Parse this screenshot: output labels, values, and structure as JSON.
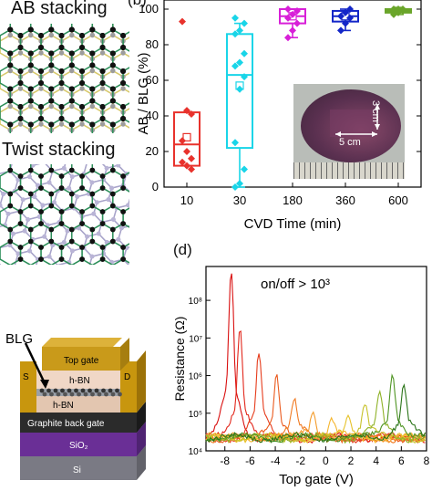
{
  "panel_a": {
    "label_ab": "AB stacking",
    "label_twist": "Twist stacking"
  },
  "panel_b": {
    "label": "(b)",
    "inset": {
      "dim_width": "5 cm",
      "dim_height": "3 cm"
    }
  },
  "panel_c": {
    "label_bl": "BLG",
    "layers": [
      "Top gate",
      "h-BN",
      "h-BN",
      "Graphite back gate",
      "SiO₂",
      "Si"
    ],
    "contact_s": "S",
    "contact_d": "D"
  },
  "panel_d": {
    "label": "(d)",
    "annotation": "on/off > 10³"
  },
  "chart_data": [
    {
      "type": "box",
      "xlabel": "CVD Time (min)",
      "ylabel": "AB / BLG (%)",
      "categories": [
        "10",
        "30",
        "180",
        "360",
        "600"
      ],
      "ylim": [
        0,
        100
      ],
      "yticks": [
        0,
        20,
        40,
        60,
        80,
        100
      ],
      "colors": [
        "#e8322c",
        "#19d5e8",
        "#d81fd8",
        "#1326c8",
        "#6aa52a"
      ],
      "boxes": [
        {
          "q1": 12,
          "median": 24,
          "q3": 42,
          "mean": 28,
          "min": 12,
          "max": 42
        },
        {
          "q1": 22,
          "median": 63,
          "q3": 86,
          "mean": 57,
          "min": 0,
          "max": 92
        },
        {
          "q1": 92,
          "median": 96,
          "q3": 100,
          "mean": 96,
          "min": 84,
          "max": 100
        },
        {
          "q1": 93,
          "median": 96,
          "q3": 99,
          "mean": 96,
          "min": 88,
          "max": 100
        },
        {
          "q1": 98,
          "median": 99,
          "q3": 100,
          "mean": 99,
          "min": 97,
          "max": 100
        }
      ],
      "points": [
        [
          93,
          43,
          41,
          26,
          20,
          16,
          14,
          12,
          10
        ],
        [
          0,
          2,
          10,
          25,
          55,
          62,
          68,
          70,
          75,
          86,
          88,
          92,
          95
        ],
        [
          84,
          88,
          92,
          95,
          97,
          99,
          100
        ],
        [
          88,
          92,
          95,
          96,
          98,
          100
        ],
        [
          97,
          98,
          99,
          99,
          100,
          100,
          100
        ]
      ]
    },
    {
      "type": "line",
      "xlabel": "Top gate (V)",
      "ylabel": "Resistance (Ω)",
      "xlim": [
        -9.5,
        8
      ],
      "xticks": [
        -8,
        -6,
        -4,
        -2,
        0,
        2,
        4,
        6,
        8
      ],
      "ylim_log10": [
        4,
        8.9
      ],
      "yticks": [
        "10⁴",
        "10⁵",
        "10⁶",
        "10⁷",
        "10⁸"
      ],
      "series": [
        {
          "color": "#d90f0f",
          "peak_x": -7.5,
          "peak_log": 8.75
        },
        {
          "color": "#e2261a",
          "peak_x": -6.8,
          "peak_log": 7.25
        },
        {
          "color": "#e63c1c",
          "peak_x": -5.3,
          "peak_log": 6.6
        },
        {
          "color": "#ea5a1e",
          "peak_x": -3.9,
          "peak_log": 6.0
        },
        {
          "color": "#f07a22",
          "peak_x": -2.5,
          "peak_log": 5.4
        },
        {
          "color": "#f39a28",
          "peak_x": -1.0,
          "peak_log": 5.05
        },
        {
          "color": "#f5b52c",
          "peak_x": 0.5,
          "peak_log": 4.85
        },
        {
          "color": "#e6c22a",
          "peak_x": 1.8,
          "peak_log": 4.9
        },
        {
          "color": "#c7c22a",
          "peak_x": 3.1,
          "peak_log": 5.25
        },
        {
          "color": "#8fb228",
          "peak_x": 4.3,
          "peak_log": 5.55
        },
        {
          "color": "#4e9422",
          "peak_x": 5.3,
          "peak_log": 6.0
        },
        {
          "color": "#2a7418",
          "peak_x": 6.2,
          "peak_log": 5.7
        }
      ]
    }
  ]
}
